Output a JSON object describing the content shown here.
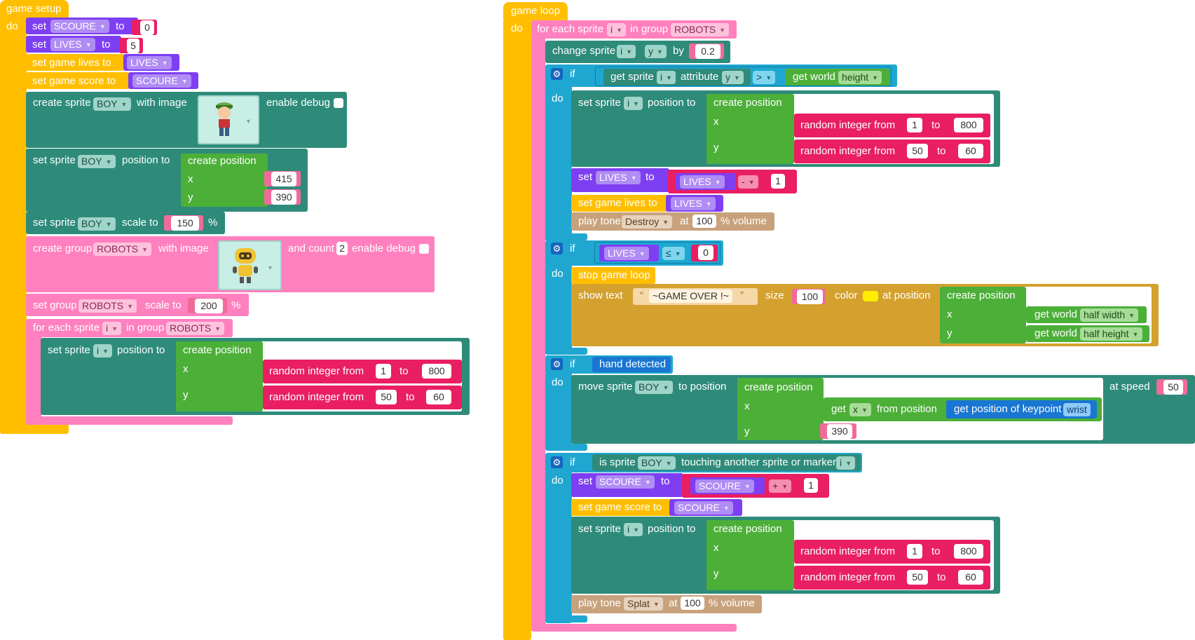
{
  "workspace": {
    "setup": {
      "hat": "game setup",
      "do": "do",
      "set1": {
        "kw": "set",
        "var": "SCOURE",
        "to": "to",
        "val": "0"
      },
      "set2": {
        "kw": "set",
        "var": "LIVES",
        "to": "to",
        "val": "5"
      },
      "lives": {
        "label": "set game lives to",
        "var": "LIVES"
      },
      "score": {
        "label": "set game score to",
        "var": "SCOURE"
      },
      "create_sprite": {
        "label": "create sprite",
        "name": "BOY",
        "with_image": "with image",
        "enable_debug": "enable debug"
      },
      "pos": {
        "label": "set sprite",
        "name": "BOY",
        "position_to": "position to",
        "create": "create position",
        "x": "x",
        "y": "y",
        "xval": "415",
        "yval": "390"
      },
      "scale": {
        "label": "set sprite",
        "name": "BOY",
        "scale_to": "scale to",
        "val": "150",
        "pct": "%"
      },
      "group": {
        "label": "create group",
        "name": "ROBOTS",
        "with_image": "with image",
        "and_count": "and count",
        "count": "2",
        "enable_debug": "enable debug"
      },
      "gscale": {
        "label": "set group",
        "name": "ROBOTS",
        "scale_to": "scale to",
        "val": "200",
        "pct": "%"
      },
      "foreach": {
        "label": "for each sprite",
        "var": "i",
        "in_group": "in group",
        "group": "ROBOTS"
      },
      "rpos": {
        "label": "set sprite",
        "var": "i",
        "position_to": "position to",
        "create": "create position",
        "x": "x",
        "y": "y",
        "rand": "random integer from",
        "to": "to",
        "x1": "1",
        "x2": "800",
        "y1": "50",
        "y2": "60"
      }
    },
    "loop": {
      "hat": "game loop",
      "do": "do",
      "foreach": {
        "label": "for each sprite",
        "var": "i",
        "in_group": "in group",
        "group": "ROBOTS"
      },
      "change": {
        "label": "change sprite",
        "var": "i",
        "axis": "y",
        "by": "by",
        "val": "0.2"
      },
      "if1": {
        "if": "if",
        "do": "do",
        "get_sprite": "get sprite",
        "var": "i",
        "attribute": "attribute",
        "attr": "y",
        "op": ">",
        "get_world": "get world",
        "world_attr": "height",
        "set_sprite": "set sprite",
        "position_to": "position to",
        "create": "create position",
        "x": "x",
        "y": "y",
        "rand": "random integer from",
        "to": "to",
        "x1": "1",
        "x2": "800",
        "y1": "50",
        "y2": "60",
        "set_kw": "set",
        "lives_var": "LIVES",
        "to_kw": "to",
        "minus": "-",
        "one": "1",
        "lives_label": "set game lives to",
        "tone": "play tone",
        "tone_name": "Destroy",
        "at": "at",
        "vol": "100",
        "volume": "% volume"
      },
      "if2": {
        "if": "if",
        "do": "do",
        "var": "LIVES",
        "op": "≤",
        "val": "0",
        "stop": "stop game loop",
        "show": "show text",
        "text": "~GAME OVER !~",
        "size": "size",
        "size_val": "100",
        "color": "color",
        "color_hex": "#ffee00",
        "at_position": "at position",
        "create": "create position",
        "x": "x",
        "y": "y",
        "get_world": "get world",
        "half_width": "half width",
        "half_height": "half height"
      },
      "if3": {
        "if": "if",
        "do": "do",
        "cond": "hand detected",
        "move": "move sprite",
        "name": "BOY",
        "to_position": "to position",
        "create": "create position",
        "x": "x",
        "y": "y",
        "get": "get",
        "axis": "x",
        "from_position": "from position",
        "keypoint": "get position of keypoint",
        "kp": "wrist",
        "yval": "390",
        "at_speed": "at speed",
        "speed": "50"
      },
      "if4": {
        "if": "if",
        "do": "do",
        "cond_a": "is sprite",
        "name": "BOY",
        "cond_b": "touching another sprite or marker",
        "var": "i",
        "set_kw": "set",
        "score_var": "SCOURE",
        "to_kw": "to",
        "plus": "+",
        "one": "1",
        "score_label": "set game score to",
        "set_sprite": "set sprite",
        "svar": "i",
        "position_to": "position to",
        "create": "create position",
        "x": "x",
        "y": "y",
        "rand": "random integer from",
        "to": "to",
        "x1": "1",
        "x2": "800",
        "y1": "50",
        "y2": "60",
        "tone": "play tone",
        "tone_name": "Splat",
        "at": "at",
        "vol": "100",
        "volume": "% volume"
      }
    }
  }
}
